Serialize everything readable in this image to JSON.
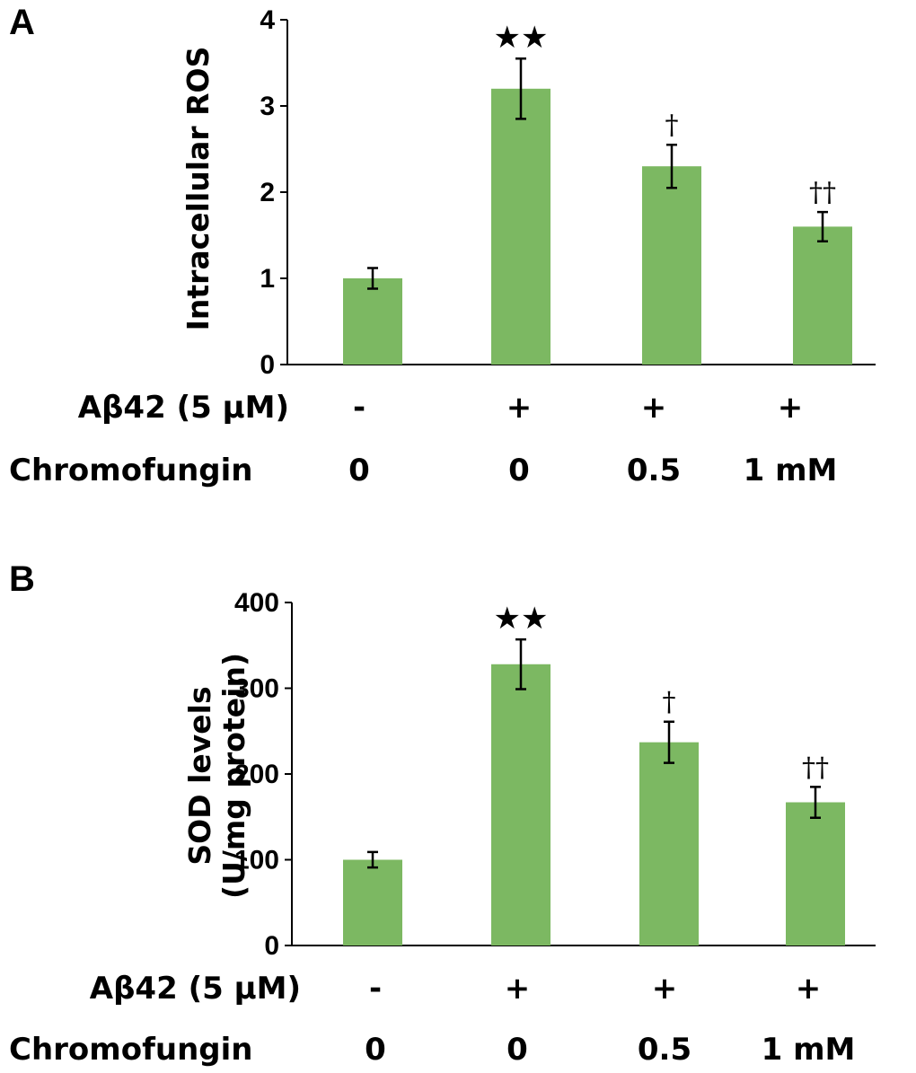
{
  "chart_data": [
    {
      "type": "bar",
      "panel_label": "A",
      "ylabel_lines": [
        "Intracellular ROS"
      ],
      "ylim": [
        0,
        4
      ],
      "yticks": [
        "0",
        "1",
        "2",
        "3",
        "4"
      ],
      "categories": [
        "Aβ42 - / Chromofungin 0",
        "Aβ42 + / Chromofungin 0",
        "Aβ42 + / Chromofungin 0.5",
        "Aβ42 + / Chromofungin 1 mM"
      ],
      "values": [
        1.0,
        3.2,
        2.3,
        1.6
      ],
      "errors": [
        0.12,
        0.35,
        0.25,
        0.17
      ],
      "significance": [
        "",
        "★★",
        "†",
        "††"
      ],
      "condition_rows": [
        {
          "label": "Aβ42 (5 μM)",
          "values": [
            "-",
            "+",
            "+",
            "+"
          ]
        },
        {
          "label": "Chromofungin",
          "values": [
            "0",
            "0",
            "0.5",
            "1 mM"
          ]
        }
      ],
      "bar_color": "#7cb862"
    },
    {
      "type": "bar",
      "panel_label": "B",
      "ylabel_lines": [
        "SOD levels",
        "(U/mg protein)"
      ],
      "ylim": [
        0,
        400
      ],
      "yticks": [
        "0",
        "100",
        "200",
        "300",
        "400"
      ],
      "categories": [
        "Aβ42 - / Chromofungin 0",
        "Aβ42 + / Chromofungin 0",
        "Aβ42 + / Chromofungin 0.5",
        "Aβ42 + / Chromofungin 1 mM"
      ],
      "values": [
        100,
        328,
        237,
        167
      ],
      "errors": [
        9,
        29,
        24,
        18
      ],
      "significance": [
        "",
        "★★",
        "†",
        "††"
      ],
      "condition_rows": [
        {
          "label": "Aβ42 (5 μM)",
          "values": [
            "-",
            "+",
            "+",
            "+"
          ]
        },
        {
          "label": "Chromofungin",
          "values": [
            "0",
            "0",
            "0.5",
            "1 mM"
          ]
        }
      ],
      "bar_color": "#7cb862"
    }
  ]
}
